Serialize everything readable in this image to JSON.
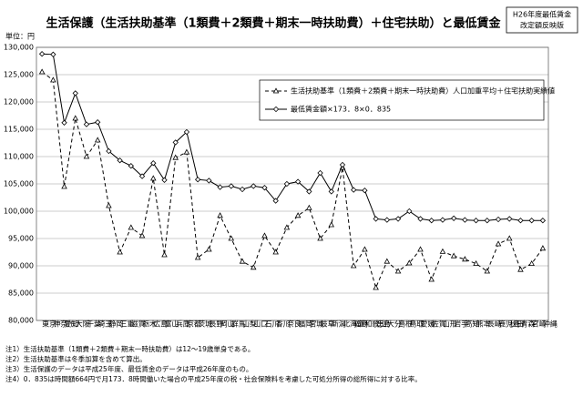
{
  "chart_data": {
    "type": "line",
    "title": "生活保護（生活扶助基準（1類費＋2類費＋期末一時扶助費）＋住宅扶助）と最低賃金",
    "badge": [
      "H26年度最低賃金",
      "改定額反映版"
    ],
    "y_label": "単位：円",
    "categories": [
      "東京",
      "神奈川",
      "愛知",
      "大阪",
      "千葉",
      "埼玉",
      "静岡",
      "三重",
      "滋賀",
      "栃木",
      "広島",
      "富山",
      "兵庫",
      "京都",
      "茨城",
      "長野",
      "岡山",
      "群馬",
      "山梨",
      "山口",
      "石川",
      "香川",
      "奈良",
      "福岡",
      "宮城",
      "岐阜",
      "新潟",
      "北海道",
      "福島",
      "和歌山",
      "徳島",
      "大分",
      "島根",
      "鳥取",
      "愛媛",
      "佐賀",
      "山形",
      "岩手",
      "高知",
      "熊本",
      "長崎",
      "鹿児島",
      "秋田",
      "青森",
      "宮崎",
      "沖縄"
    ],
    "series": [
      {
        "name": "生活扶助基準（1類費＋2類費＋期末一時扶助費）人口加重平均＋住宅扶助実績値",
        "color": "#000000",
        "dash": true,
        "marker": "triangle",
        "values": [
          125500,
          124000,
          104500,
          117000,
          110000,
          113000,
          101000,
          92500,
          97000,
          95500,
          106000,
          92000,
          109800,
          110800,
          91500,
          93000,
          99200,
          95000,
          90800,
          89700,
          95500,
          92500,
          97000,
          99200,
          100600,
          95000,
          97500,
          108000,
          90000,
          93000,
          86000,
          90800,
          89000,
          90500,
          93000,
          87500,
          92600,
          91800,
          91200,
          90400,
          89000,
          94000,
          95000,
          89300,
          90400,
          93200
        ]
      },
      {
        "name": "最低賃金額×173．8×0．835",
        "color": "#000000",
        "dash": false,
        "marker": "diamond",
        "values": [
          128800,
          128700,
          116200,
          121600,
          115900,
          116300,
          111000,
          109300,
          108300,
          106400,
          108800,
          105700,
          112600,
          114500,
          105800,
          105600,
          104400,
          104600,
          104000,
          104600,
          104300,
          101900,
          105000,
          105400,
          103600,
          107000,
          103600,
          108500,
          103900,
          103800,
          98600,
          98400,
          98600,
          100000,
          98600,
          98300,
          98400,
          98700,
          98400,
          98300,
          98300,
          98500,
          98600,
          98300,
          98300,
          98300
        ]
      }
    ],
    "ylim": [
      80000,
      130000
    ],
    "yticks": [
      {
        "value": 80000,
        "label": "80,000"
      },
      {
        "value": 85000,
        "label": "85,000"
      },
      {
        "value": 90000,
        "label": "90,000"
      },
      {
        "value": 95000,
        "label": "95,000"
      },
      {
        "value": 100000,
        "label": "100,000"
      },
      {
        "value": 105000,
        "label": "105,000"
      },
      {
        "value": 110000,
        "label": "110,000"
      },
      {
        "value": 115000,
        "label": "115,000"
      },
      {
        "value": 120000,
        "label": "120,000"
      },
      {
        "value": 125000,
        "label": "125,000"
      },
      {
        "value": 130000,
        "label": "130,000"
      }
    ],
    "grid": true,
    "legend": "upper right",
    "notes": [
      "注1）生活扶助基準（1類費＋2類費＋期末一時扶助費）は12～19歳単身である。",
      "注2）生活扶助基準は冬季加算を含めて算出。",
      "注3）生活保護のデータは平成25年度、最低賃金のデータは平成26年度のもの。",
      "注4）0．835は時間額664円で月173．8時間働いた場合の平成25年度の税・社会保険料を考慮した可処分所得の総所得に対する比率。"
    ]
  }
}
